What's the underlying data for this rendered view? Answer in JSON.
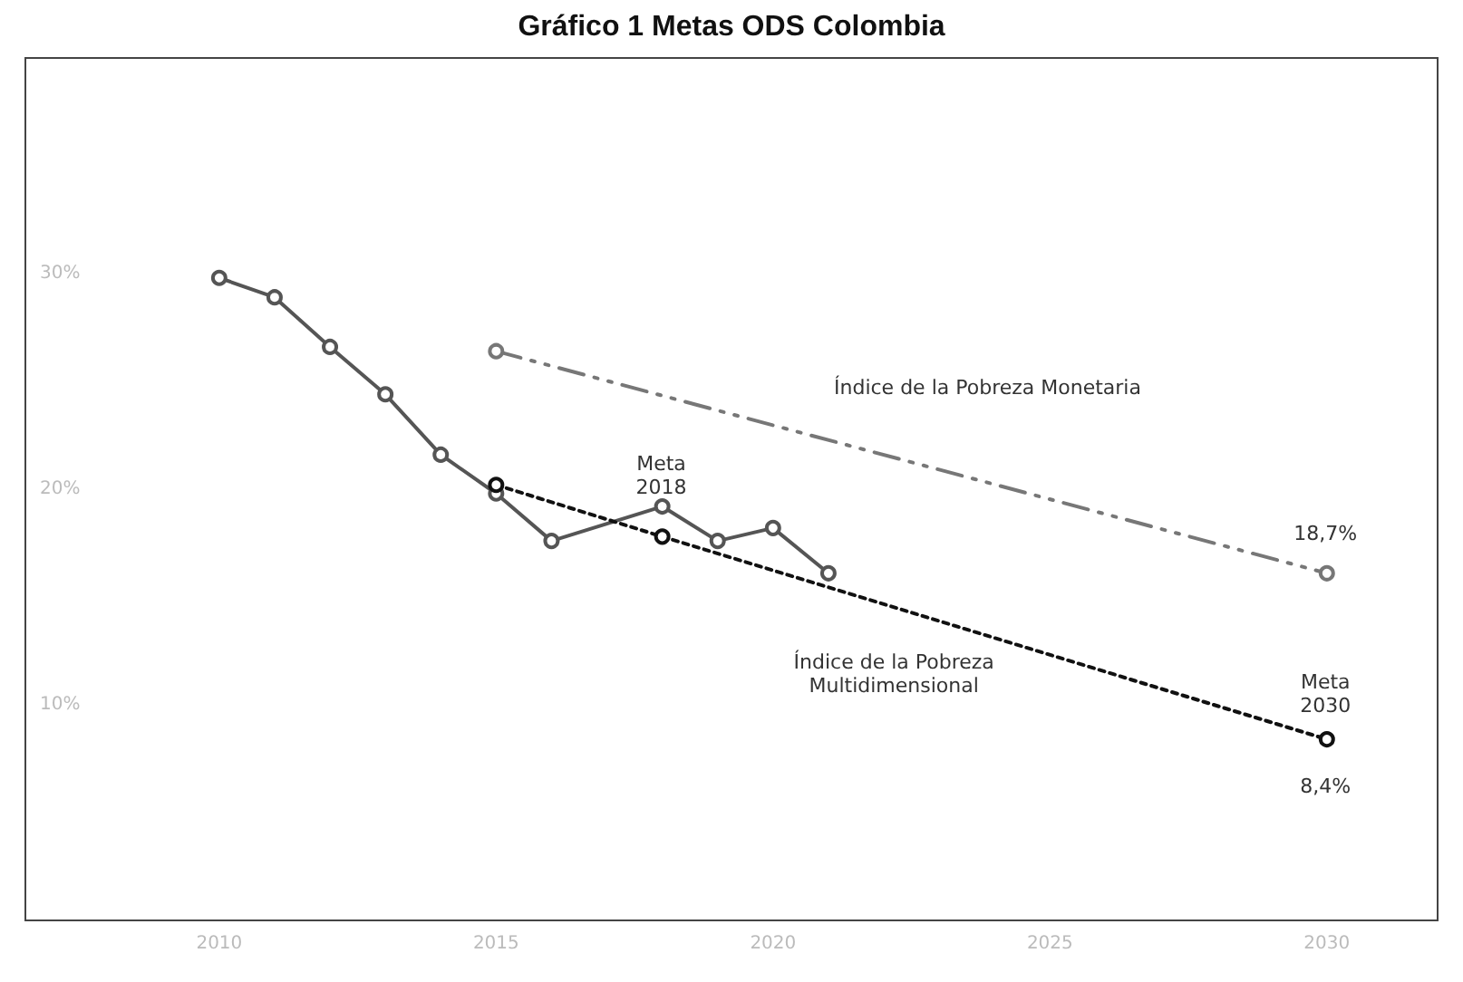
{
  "chart_data": {
    "type": "line",
    "title": "Gráfico 1 Metas ODS Colombia",
    "series": [
      {
        "color": "#555555",
        "marker": "circle",
        "line_style": "solid",
        "x": [
          2010,
          2011,
          2012,
          2013,
          2014,
          2015,
          2016,
          2018,
          2019,
          2020,
          2021
        ],
        "values": [
          29.8,
          28.9,
          26.6,
          24.4,
          21.6,
          19.8,
          17.6,
          19.2,
          17.6,
          18.2,
          16.1
        ]
      },
      {
        "color": "#111111",
        "marker": "circle",
        "line_style": "dotted",
        "x": [
          2015,
          2018,
          2030
        ],
        "values": [
          20.2,
          17.8,
          8.4
        ]
      },
      {
        "color": "#777777",
        "marker": "circle",
        "line_style": "dashdot",
        "x": [
          2015,
          2030
        ],
        "values": [
          26.4,
          16.1
        ]
      }
    ],
    "xlim": [
      2006.5,
      2032
    ],
    "xticks": [
      2010,
      2015,
      2020,
      2025,
      2030
    ],
    "ylim": [
      0,
      40
    ],
    "yticks": [
      {
        "value": 10,
        "label": "10%"
      },
      {
        "value": 20,
        "label": "20%"
      },
      {
        "value": 30,
        "label": "30%"
      }
    ],
    "grid": false,
    "annotations": [
      "Meta\n2018",
      "Índice de la Pobreza Monetaria",
      "18,7%",
      "Índice de la Pobreza\nMultidimensional",
      "Meta\n2030",
      "8,4%"
    ]
  }
}
